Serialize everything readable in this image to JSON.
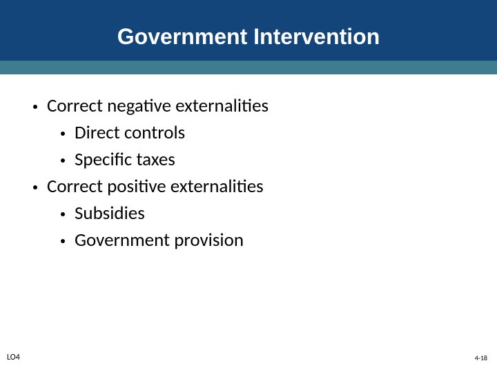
{
  "slide": {
    "title": "Government Intervention",
    "header_colors": {
      "top_band": "#13447a",
      "bottom_band": "#3d7d8f",
      "title_text": "#ffffff"
    },
    "title_fontsize": 32,
    "title_font": "Verdana",
    "background_color": "#ffffff"
  },
  "bullets": {
    "level1_fontsize": 27,
    "level2_fontsize": 27,
    "text_color": "#000000",
    "dot_color": "#000000",
    "items": [
      {
        "text": "Correct negative externalities",
        "children": [
          {
            "text": "Direct controls"
          },
          {
            "text": "Specific taxes"
          }
        ]
      },
      {
        "text": "Correct positive externalities",
        "children": [
          {
            "text": "Subsidies"
          },
          {
            "text": "Government provision"
          }
        ]
      }
    ]
  },
  "footer": {
    "left": "LO4",
    "right": "4-18",
    "left_fontsize": 12,
    "right_fontsize": 10
  }
}
